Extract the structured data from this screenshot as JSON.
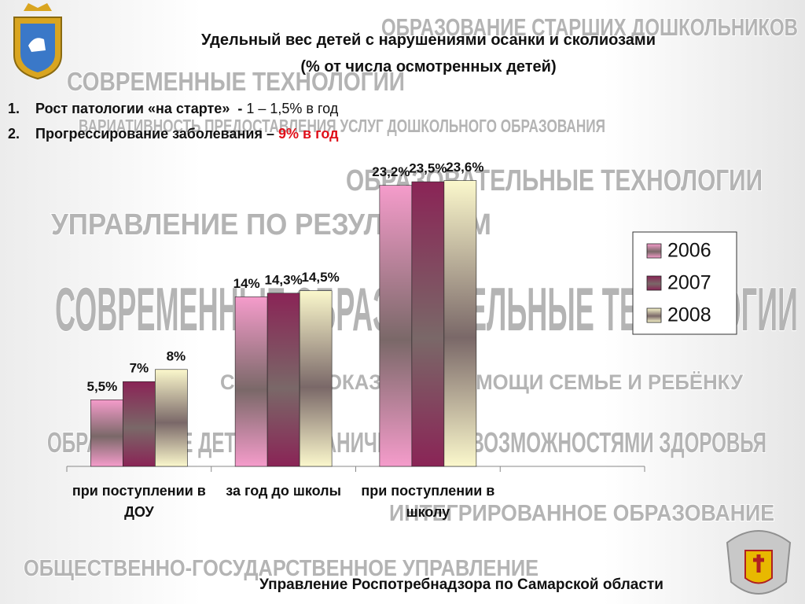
{
  "header": {
    "title": [
      "Удельный вес детей с нарушениями осанки и сколиозами",
      "(% от числа осмотренных детей)"
    ],
    "points": [
      {
        "number": "1.",
        "label": "Рост патологии «на старте»  - ",
        "value": "1 – 1,5% в год"
      },
      {
        "number": "2.",
        "label": "Прогрессирование заболевания – ",
        "value": "9% в год"
      }
    ],
    "footer": "Управление Роспотребнадзора по Самарской области"
  },
  "watermarks": [
    "ОБРАЗОВАНИЕ СТАРШИХ ДОШКОЛЬНИКОВ",
    "СОВРЕМЕННЫЕ ТЕХНОЛОГИИ",
    "ВАРИАТИВНОСТЬ ПРЕДОСТАВЛЕНИЯ УСЛУГ ДОШКОЛЬНОГО ОБРАЗОВАНИЯ",
    "ОБРАЗОВАТЕЛЬНЫЕ ТЕХНОЛОГИИ",
    "УПРАВЛЕНИЕ ПО РЕЗУЛЬТАТАМ",
    "СОВРЕМЕННЫЕ ОБРАЗОВАТЕЛЬНЫЕ ТЕХНОЛОГИИ",
    "СИСТЕМА ОКАЗАНИЯ ПОМОЩИ СЕМЬЕ И РЕБЁНКУ",
    "ОБРАЗОВАНИЕ ДЕТЕЙ С ОГРАНИЧЕННЫМИ ВОЗМОЖНОСТЯМИ ЗДОРОВЬЯ",
    "ИНТЕГРИРОВАННОЕ ОБРАЗОВАНИЕ",
    "ОБЩЕСТВЕННО-ГОСУДАРСТВЕННОЕ УПРАВЛЕНИЕ"
  ],
  "chart_data": {
    "type": "bar",
    "categories": [
      "при поступлении в ДОУ",
      "за год до школы",
      "при поступлении в школу",
      null
    ],
    "series": [
      {
        "name": "2006",
        "color": "#f59ccb",
        "values": [
          5.5,
          14,
          23.2,
          null
        ],
        "value_labels": [
          "5,5%",
          "14%",
          "23,2%",
          null
        ]
      },
      {
        "name": "2007",
        "color": "#8a2456",
        "values": [
          7,
          14.3,
          23.5,
          null
        ],
        "value_labels": [
          "7%",
          "14,3%",
          "23,5%",
          null
        ]
      },
      {
        "name": "2008",
        "color": "#fbf8cc",
        "values": [
          8,
          14.5,
          23.6,
          null
        ],
        "value_labels": [
          "8%",
          "14,5%",
          "23,6%",
          null
        ]
      }
    ],
    "ylim": [
      0,
      25
    ],
    "legend": "right"
  }
}
